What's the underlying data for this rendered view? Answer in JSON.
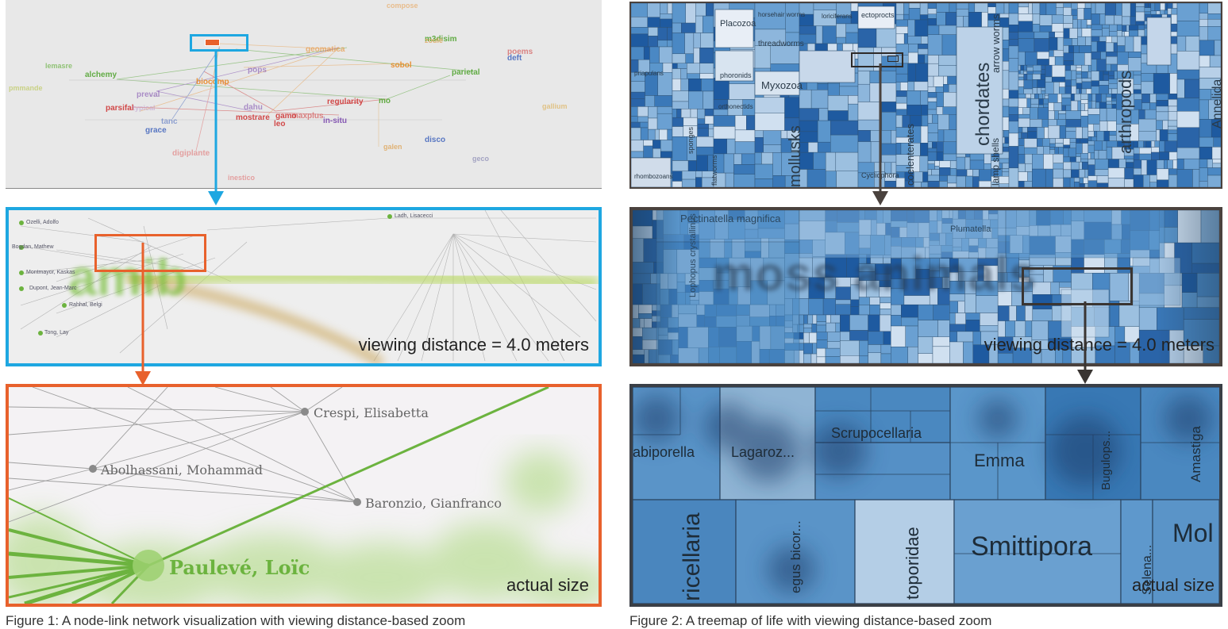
{
  "colors": {
    "cyan": "#1ea7e1",
    "orange": "#e8612c",
    "dark": "#4a423e",
    "darkNavy": "#2e3a44",
    "green": "#6cb33f",
    "treemapBlue": "#4a8fc4"
  },
  "left": {
    "overview_labels": [
      {
        "t": "compose",
        "c": "#e8a050"
      },
      {
        "t": "m3disim",
        "c": "#5aa83c"
      },
      {
        "t": "zoulé",
        "c": "#e0b070"
      },
      {
        "t": "poems",
        "c": "#d04040"
      },
      {
        "t": "deft",
        "c": "#5070c0"
      },
      {
        "t": "lemasre",
        "c": "#8cc070"
      },
      {
        "t": "geomatica",
        "c": "#e88c2c"
      },
      {
        "t": "alchemy",
        "c": "#5aa83c"
      },
      {
        "t": "biocomp",
        "c": "#e88c2c"
      },
      {
        "t": "pops",
        "c": "#8050b0"
      },
      {
        "t": "sobol",
        "c": "#e88c2c"
      },
      {
        "t": "parietal",
        "c": "#5aa83c"
      },
      {
        "t": "preval",
        "c": "#8050b0"
      },
      {
        "t": "pmmande",
        "c": "#c8d080"
      },
      {
        "t": "parsifal",
        "c": "#d04040"
      },
      {
        "t": "typical",
        "c": "#c0a0d0"
      },
      {
        "t": "regularity",
        "c": "#d04040"
      },
      {
        "t": "mo",
        "c": "#5aa83c"
      },
      {
        "t": "dahu",
        "c": "#8050b0"
      },
      {
        "t": "mostrare",
        "c": "#d04040"
      },
      {
        "t": "gamo",
        "c": "#d04040"
      },
      {
        "t": "maxplus",
        "c": "#d04040"
      },
      {
        "t": "in-situ",
        "c": "#8050b0"
      },
      {
        "t": "leo",
        "c": "#d04040"
      },
      {
        "t": "tanc",
        "c": "#5070c0"
      },
      {
        "t": "grace",
        "c": "#5070c0"
      },
      {
        "t": "disco",
        "c": "#5070c0"
      },
      {
        "t": "digiplante",
        "c": "#e07070"
      },
      {
        "t": "galen",
        "c": "#e0b070"
      },
      {
        "t": "geco",
        "c": "#a0a0c0"
      },
      {
        "t": "inestico",
        "c": "#e07070"
      },
      {
        "t": "gallium",
        "c": "#e0c080"
      }
    ],
    "mid_big_label": "amib",
    "mid_names": [
      "Ozelli, Adolfo",
      "Bogdan, Mathew",
      "Montmayor, Kaskas",
      "Dupont, Jean-Marc",
      "Rahhal, Belgi",
      "Tong, Lay",
      "Ladh, Lisacecci"
    ],
    "mid_caption": "viewing distance = 4.0 meters",
    "bottom_nodes": {
      "n1": "Crespi, Elisabetta",
      "n2": "Abolhassani, Mohammad",
      "n3": "Baronzio, Gianfranco",
      "n4": "Paulevé, Loïc"
    },
    "bottom_caption": "actual size"
  },
  "right": {
    "overview_labels": {
      "a": "Placozoa",
      "b": "horsehair worms",
      "c": "loriciferans",
      "d": "ectoprocts",
      "e": "priapulans",
      "f": "phoronids",
      "g": "threadworms",
      "h": "Myxozoa",
      "i": "orthonectids",
      "j": "sponges",
      "k": "flatworms",
      "l": "mollusks",
      "m": "coelenterates",
      "n": "chordates",
      "o": "arrow worms",
      "p": "lamp shells",
      "q": "arthropods",
      "r": "Annelida",
      "s": "rhombozoans",
      "t": "Cycliophora"
    },
    "mid_big_label": "moss animals",
    "mid_small": {
      "a": "Pectinatella magnifica",
      "b": "Lophopus crystallinus",
      "c": "Plumatella"
    },
    "mid_caption": "viewing distance = 4.0 meters",
    "bottom_labels": {
      "a": "abiporella",
      "b": "Lagaroz...",
      "c": "Scrupocellaria",
      "d": "Emma",
      "e": "Bugulops...",
      "f": "Amastiga",
      "g": "ricellaria",
      "h": "egus bicor...",
      "i": "toporidae",
      "j": "Smittipora",
      "k": "Selena...",
      "l": "Mol"
    },
    "bottom_caption": "actual size"
  },
  "footer": {
    "left": "Figure 1: A node-link network visualization with viewing distance-based zoom",
    "right": "Figure 2: A treemap of life with viewing distance-based zoom"
  }
}
